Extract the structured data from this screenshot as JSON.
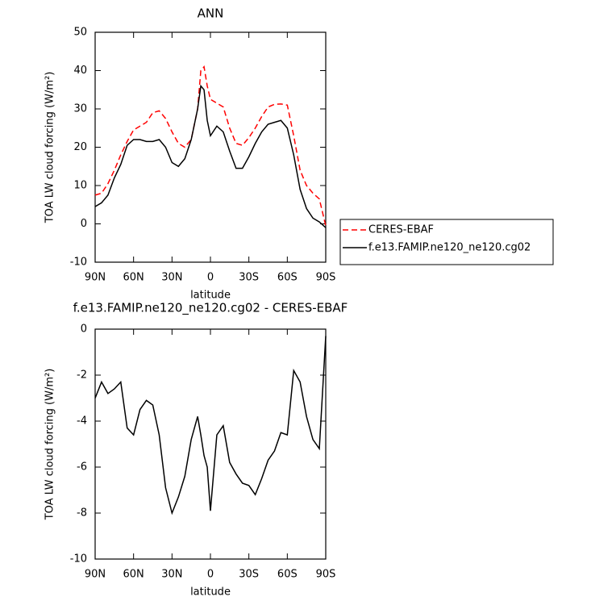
{
  "chart_data": [
    {
      "type": "line",
      "title": "ANN",
      "x_label": "latitude",
      "y_label": "TOA LW cloud forcing (W/m²)",
      "x": [
        90,
        85,
        80,
        75,
        70,
        65,
        60,
        55,
        50,
        45,
        40,
        35,
        30,
        25,
        20,
        15,
        10,
        7.5,
        5,
        2.5,
        0,
        -5,
        -10,
        -15,
        -20,
        -25,
        -30,
        -35,
        -40,
        -45,
        -50,
        -55,
        -60,
        -65,
        -70,
        -75,
        -80,
        -85,
        -90
      ],
      "series": [
        {
          "name": "CERES-EBAF",
          "color": "#ff0000",
          "line_style": "dashed",
          "values": [
            7.5,
            8,
            10.5,
            14,
            18,
            21.5,
            24.5,
            25.5,
            26.5,
            29,
            29.5,
            27.5,
            24,
            21,
            20,
            22,
            30,
            40,
            41,
            36,
            32.5,
            31.5,
            30.5,
            25,
            21,
            20.5,
            22.5,
            25,
            28,
            30.5,
            31.2,
            31.3,
            31,
            23,
            14,
            10,
            8,
            6.5,
            -0.5
          ]
        },
        {
          "name": "f.e13.FAMIP.ne120_ne120.cg02",
          "color": "#000000",
          "line_style": "solid",
          "values": [
            4.5,
            5.5,
            7.5,
            12,
            15.5,
            20.5,
            22,
            22,
            21.5,
            21.5,
            22,
            20,
            16,
            15,
            17,
            22,
            30,
            36,
            35,
            27,
            23,
            25.5,
            24,
            19,
            14.5,
            14.5,
            17.5,
            21,
            24,
            26,
            26.5,
            27,
            25,
            18,
            9,
            4,
            1.5,
            0.5,
            -1
          ]
        }
      ],
      "xlim": [
        90,
        -90
      ],
      "xticks": [
        {
          "value": 90,
          "label": "90N"
        },
        {
          "value": 60,
          "label": "60N"
        },
        {
          "value": 30,
          "label": "30N"
        },
        0,
        {
          "value": -30,
          "label": "30S"
        },
        {
          "value": -60,
          "label": "60S"
        },
        {
          "value": -90,
          "label": "90S"
        }
      ],
      "ylim": [
        -10,
        50
      ],
      "yticks": [
        -10,
        0,
        10,
        20,
        30,
        40,
        50
      ],
      "legend": "right"
    },
    {
      "type": "line",
      "title": "f.e13.FAMIP.ne120_ne120.cg02 - CERES-EBAF",
      "x_label": "latitude",
      "y_label": "TOA LW cloud forcing (W/m²)",
      "x": [
        90,
        85,
        80,
        75,
        70,
        65,
        60,
        55,
        50,
        45,
        40,
        35,
        30,
        25,
        20,
        15,
        10,
        7.5,
        5,
        2.5,
        0,
        -5,
        -10,
        -15,
        -20,
        -25,
        -30,
        -35,
        -40,
        -45,
        -50,
        -55,
        -60,
        -65,
        -70,
        -75,
        -80,
        -85,
        -90
      ],
      "series": [
        {
          "color": "#000000",
          "line_style": "solid",
          "values": [
            -3,
            -2.3,
            -2.8,
            -2.6,
            -2.3,
            -4.3,
            -4.6,
            -3.5,
            -3.1,
            -3.3,
            -4.6,
            -6.9,
            -8,
            -7.3,
            -6.4,
            -4.8,
            -3.8,
            -4.6,
            -5.5,
            -6,
            -7.9,
            -4.6,
            -4.2,
            -5.8,
            -6.3,
            -6.7,
            -6.8,
            -7.2,
            -6.5,
            -5.7,
            -5.3,
            -4.5,
            -4.6,
            -1.8,
            -2.3,
            -3.8,
            -4.8,
            -5.2,
            -0.3
          ]
        }
      ],
      "xlim": [
        90,
        -90
      ],
      "xticks": [
        {
          "value": 90,
          "label": "90N"
        },
        {
          "value": 60,
          "label": "60N"
        },
        {
          "value": 30,
          "label": "30N"
        },
        0,
        {
          "value": -30,
          "label": "30S"
        },
        {
          "value": -60,
          "label": "60S"
        },
        {
          "value": -90,
          "label": "90S"
        }
      ],
      "ylim": [
        -10,
        0
      ],
      "yticks": [
        -10,
        -8,
        -6,
        -4,
        -2,
        0
      ]
    }
  ]
}
